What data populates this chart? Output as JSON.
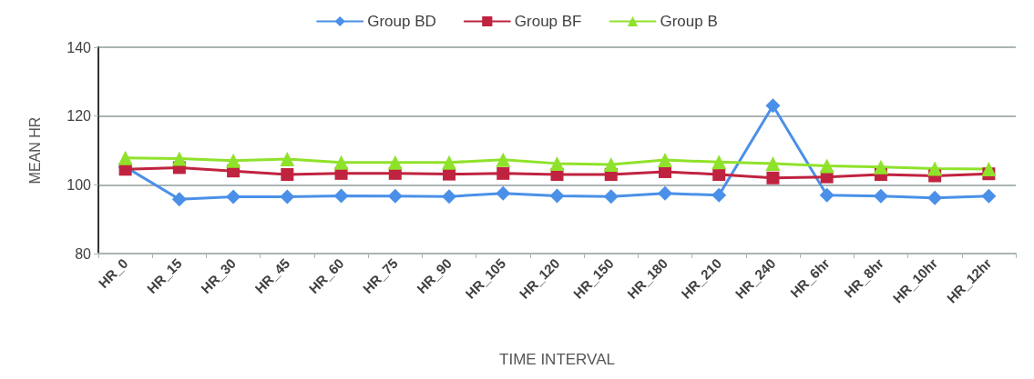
{
  "chart_data": {
    "type": "line",
    "xlabel": "TIME INTERVAL",
    "ylabel": "MEAN HR",
    "categories": [
      "HR_0",
      "HR_15",
      "HR_30",
      "HR_45",
      "HR_60",
      "HR_75",
      "HR_90",
      "HR_105",
      "HR_120",
      "HR_150",
      "HR_180",
      "HR_210",
      "HR_240",
      "HR_6hr",
      "HR_8hr",
      "HR_10hr",
      "HR_12hr"
    ],
    "series": [
      {
        "name": "Group BD",
        "color": "#4a90e8",
        "marker": "diamond",
        "values": [
          105.2,
          95.8,
          96.5,
          96.5,
          96.8,
          96.7,
          96.6,
          97.5,
          96.8,
          96.6,
          97.5,
          97,
          123,
          97,
          96.7,
          96.2,
          96.7
        ]
      },
      {
        "name": "Group BF",
        "color": "#c0233f",
        "marker": "square",
        "values": [
          104.5,
          105,
          104,
          103,
          103.3,
          103.3,
          103.1,
          103.3,
          103,
          103,
          103.8,
          103,
          102,
          102.3,
          103,
          102.6,
          103.2
        ]
      },
      {
        "name": "Group B",
        "color": "#8fe22a",
        "marker": "triangle",
        "values": [
          107.8,
          107.6,
          107,
          107.5,
          106.5,
          106.5,
          106.5,
          107.3,
          106.2,
          105.9,
          107.2,
          106.6,
          106.2,
          105.5,
          105.2,
          104.7,
          104.6
        ]
      }
    ],
    "ylim": [
      80,
      140
    ],
    "yticks": [
      80,
      100,
      120,
      140
    ],
    "grid": "y",
    "legend": "top",
    "line_style": "solid"
  }
}
